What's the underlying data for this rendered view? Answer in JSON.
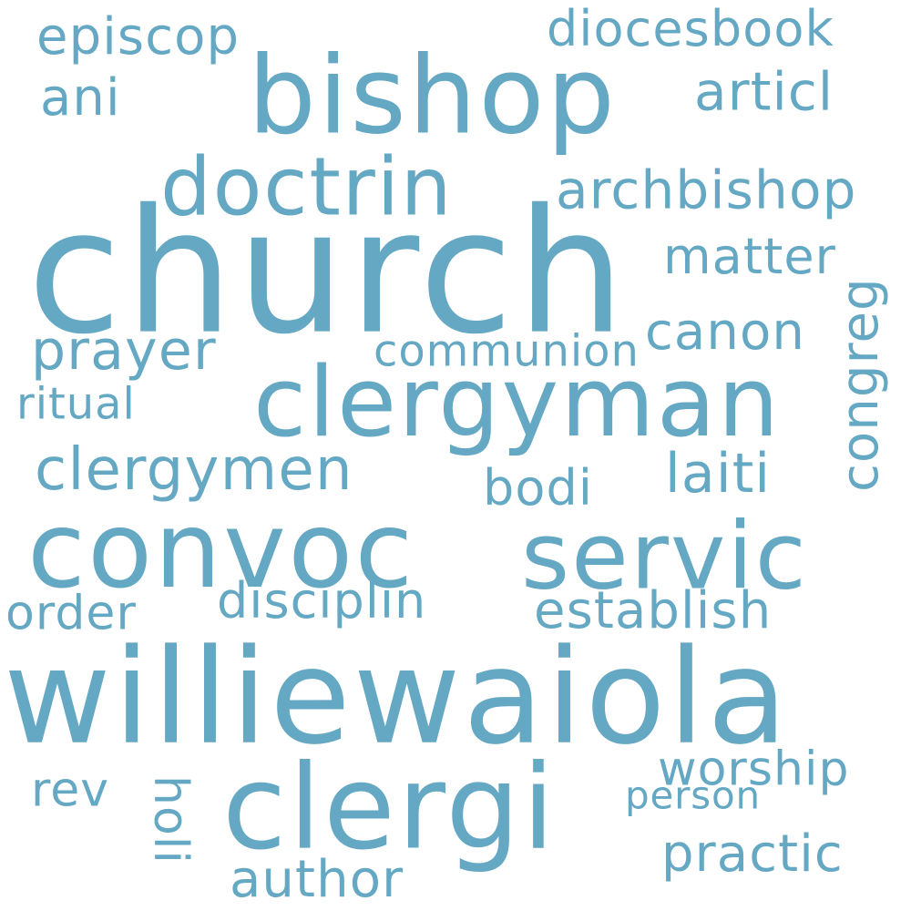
{
  "word_color": "#65a8c3",
  "background": "#ffffff",
  "words": {
    "church": "church",
    "williewaiola": "williewaiola",
    "bishop": "bishop",
    "clergyman": "clergyman",
    "clergi": "clergi",
    "doctrin": "doctrin",
    "convoc": "convoc",
    "servic": "servic",
    "archbishop": "archbishop",
    "episcop": "episcop",
    "diocesbook": "diocesbook",
    "ani": "ani",
    "articl": "articl",
    "matter": "matter",
    "canon": "canon",
    "prayer": "prayer",
    "communion": "communion",
    "congreg": "congreg",
    "ritual": "ritual",
    "clergymen": "clergymen",
    "laiti": "laiti",
    "bodi": "bodi",
    "disciplin": "disciplin",
    "order": "order",
    "establish": "establish",
    "worship": "worship",
    "rev": "rev",
    "holi": "holi",
    "person": "person",
    "practic": "practic",
    "author": "author"
  }
}
